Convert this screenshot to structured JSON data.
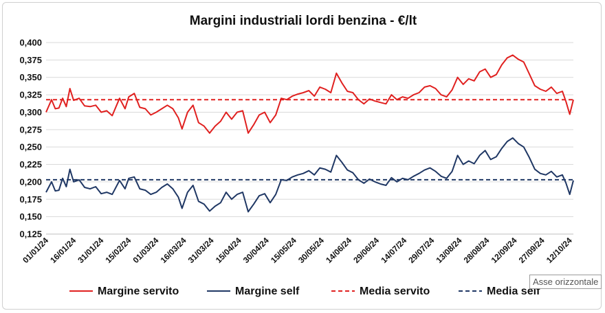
{
  "chart_data": {
    "type": "line",
    "title": "Margini industriali lordi benzina - €/lt",
    "xlabel": "",
    "ylabel": "",
    "ylim": [
      0.125,
      0.4
    ],
    "y_ticks": [
      "0,125",
      "0,150",
      "0,175",
      "0,200",
      "0,225",
      "0,250",
      "0,275",
      "0,300",
      "0,325",
      "0,350",
      "0,375",
      "0,400"
    ],
    "x_ticks": [
      "01/01/24",
      "16/01/24",
      "31/01/24",
      "15/02/24",
      "01/03/24",
      "16/03/24",
      "31/03/24",
      "15/04/24",
      "30/04/24",
      "15/05/24",
      "30/05/24",
      "14/06/24",
      "29/06/24",
      "14/07/24",
      "29/07/24",
      "13/08/24",
      "28/08/24",
      "12/09/24",
      "27/09/24",
      "12/10/24"
    ],
    "x_start": "01/01/24",
    "x_end": "14/10/24",
    "grid": "horizontal",
    "legend_position": "bottom",
    "series": [
      {
        "name": "Margine servito",
        "color": "#e0201f",
        "style": "solid",
        "points": [
          [
            "01/01/24",
            0.3
          ],
          [
            "04/01/24",
            0.318
          ],
          [
            "06/01/24",
            0.305
          ],
          [
            "08/01/24",
            0.306
          ],
          [
            "10/01/24",
            0.32
          ],
          [
            "12/01/24",
            0.308
          ],
          [
            "14/01/24",
            0.334
          ],
          [
            "16/01/24",
            0.317
          ],
          [
            "19/01/24",
            0.32
          ],
          [
            "22/01/24",
            0.309
          ],
          [
            "25/01/24",
            0.308
          ],
          [
            "28/01/24",
            0.31
          ],
          [
            "31/01/24",
            0.3
          ],
          [
            "03/02/24",
            0.302
          ],
          [
            "06/02/24",
            0.295
          ],
          [
            "10/02/24",
            0.32
          ],
          [
            "13/02/24",
            0.305
          ],
          [
            "15/02/24",
            0.322
          ],
          [
            "18/02/24",
            0.327
          ],
          [
            "21/02/24",
            0.307
          ],
          [
            "24/02/24",
            0.305
          ],
          [
            "27/02/24",
            0.296
          ],
          [
            "01/03/24",
            0.3
          ],
          [
            "04/03/24",
            0.305
          ],
          [
            "07/03/24",
            0.31
          ],
          [
            "10/03/24",
            0.305
          ],
          [
            "13/03/24",
            0.292
          ],
          [
            "15/03/24",
            0.276
          ],
          [
            "18/03/24",
            0.3
          ],
          [
            "21/03/24",
            0.31
          ],
          [
            "24/03/24",
            0.285
          ],
          [
            "27/03/24",
            0.28
          ],
          [
            "30/03/24",
            0.27
          ],
          [
            "02/04/24",
            0.28
          ],
          [
            "05/04/24",
            0.287
          ],
          [
            "08/04/24",
            0.3
          ],
          [
            "11/04/24",
            0.29
          ],
          [
            "14/04/24",
            0.3
          ],
          [
            "17/04/24",
            0.302
          ],
          [
            "20/04/24",
            0.27
          ],
          [
            "23/04/24",
            0.282
          ],
          [
            "26/04/24",
            0.296
          ],
          [
            "29/04/24",
            0.3
          ],
          [
            "02/05/24",
            0.285
          ],
          [
            "05/05/24",
            0.296
          ],
          [
            "08/05/24",
            0.32
          ],
          [
            "11/05/24",
            0.318
          ],
          [
            "14/05/24",
            0.323
          ],
          [
            "17/05/24",
            0.326
          ],
          [
            "20/05/24",
            0.328
          ],
          [
            "23/05/24",
            0.331
          ],
          [
            "26/05/24",
            0.323
          ],
          [
            "29/05/24",
            0.336
          ],
          [
            "01/06/24",
            0.333
          ],
          [
            "04/06/24",
            0.328
          ],
          [
            "07/06/24",
            0.356
          ],
          [
            "10/06/24",
            0.342
          ],
          [
            "13/06/24",
            0.33
          ],
          [
            "16/06/24",
            0.328
          ],
          [
            "19/06/24",
            0.318
          ],
          [
            "22/06/24",
            0.312
          ],
          [
            "25/06/24",
            0.319
          ],
          [
            "28/06/24",
            0.316
          ],
          [
            "01/07/24",
            0.314
          ],
          [
            "04/07/24",
            0.312
          ],
          [
            "07/07/24",
            0.325
          ],
          [
            "10/07/24",
            0.318
          ],
          [
            "13/07/24",
            0.322
          ],
          [
            "16/07/24",
            0.32
          ],
          [
            "19/07/24",
            0.325
          ],
          [
            "22/07/24",
            0.328
          ],
          [
            "25/07/24",
            0.336
          ],
          [
            "28/07/24",
            0.338
          ],
          [
            "31/07/24",
            0.334
          ],
          [
            "03/08/24",
            0.325
          ],
          [
            "06/08/24",
            0.322
          ],
          [
            "09/08/24",
            0.332
          ],
          [
            "12/08/24",
            0.35
          ],
          [
            "15/08/24",
            0.34
          ],
          [
            "18/08/24",
            0.348
          ],
          [
            "21/08/24",
            0.345
          ],
          [
            "24/08/24",
            0.358
          ],
          [
            "27/08/24",
            0.362
          ],
          [
            "30/08/24",
            0.35
          ],
          [
            "02/09/24",
            0.354
          ],
          [
            "05/09/24",
            0.368
          ],
          [
            "08/09/24",
            0.378
          ],
          [
            "11/09/24",
            0.382
          ],
          [
            "14/09/24",
            0.376
          ],
          [
            "17/09/24",
            0.372
          ],
          [
            "20/09/24",
            0.355
          ],
          [
            "23/09/24",
            0.338
          ],
          [
            "26/09/24",
            0.333
          ],
          [
            "29/09/24",
            0.33
          ],
          [
            "02/10/24",
            0.336
          ],
          [
            "05/10/24",
            0.327
          ],
          [
            "08/10/24",
            0.33
          ],
          [
            "10/10/24",
            0.315
          ],
          [
            "12/10/24",
            0.297
          ],
          [
            "14/10/24",
            0.318
          ]
        ]
      },
      {
        "name": "Margine self",
        "color": "#1f3764",
        "style": "solid",
        "points": [
          [
            "01/01/24",
            0.185
          ],
          [
            "04/01/24",
            0.2
          ],
          [
            "06/01/24",
            0.187
          ],
          [
            "08/01/24",
            0.188
          ],
          [
            "10/01/24",
            0.205
          ],
          [
            "12/01/24",
            0.193
          ],
          [
            "14/01/24",
            0.218
          ],
          [
            "16/01/24",
            0.2
          ],
          [
            "19/01/24",
            0.203
          ],
          [
            "22/01/24",
            0.192
          ],
          [
            "25/01/24",
            0.19
          ],
          [
            "28/01/24",
            0.193
          ],
          [
            "31/01/24",
            0.183
          ],
          [
            "03/02/24",
            0.185
          ],
          [
            "06/02/24",
            0.182
          ],
          [
            "10/02/24",
            0.202
          ],
          [
            "13/02/24",
            0.19
          ],
          [
            "15/02/24",
            0.205
          ],
          [
            "18/02/24",
            0.207
          ],
          [
            "21/02/24",
            0.19
          ],
          [
            "24/02/24",
            0.188
          ],
          [
            "27/02/24",
            0.182
          ],
          [
            "01/03/24",
            0.185
          ],
          [
            "04/03/24",
            0.192
          ],
          [
            "07/03/24",
            0.197
          ],
          [
            "10/03/24",
            0.19
          ],
          [
            "13/03/24",
            0.178
          ],
          [
            "15/03/24",
            0.162
          ],
          [
            "18/03/24",
            0.185
          ],
          [
            "21/03/24",
            0.195
          ],
          [
            "24/03/24",
            0.172
          ],
          [
            "27/03/24",
            0.168
          ],
          [
            "30/03/24",
            0.158
          ],
          [
            "02/04/24",
            0.165
          ],
          [
            "05/04/24",
            0.17
          ],
          [
            "08/04/24",
            0.185
          ],
          [
            "11/04/24",
            0.175
          ],
          [
            "14/04/24",
            0.182
          ],
          [
            "17/04/24",
            0.185
          ],
          [
            "20/04/24",
            0.157
          ],
          [
            "23/04/24",
            0.168
          ],
          [
            "26/04/24",
            0.18
          ],
          [
            "29/04/24",
            0.183
          ],
          [
            "02/05/24",
            0.17
          ],
          [
            "05/05/24",
            0.182
          ],
          [
            "08/05/24",
            0.203
          ],
          [
            "11/05/24",
            0.202
          ],
          [
            "14/05/24",
            0.207
          ],
          [
            "17/05/24",
            0.21
          ],
          [
            "20/05/24",
            0.212
          ],
          [
            "23/05/24",
            0.216
          ],
          [
            "26/05/24",
            0.21
          ],
          [
            "29/05/24",
            0.22
          ],
          [
            "01/06/24",
            0.218
          ],
          [
            "04/06/24",
            0.214
          ],
          [
            "07/06/24",
            0.238
          ],
          [
            "10/06/24",
            0.228
          ],
          [
            "13/06/24",
            0.217
          ],
          [
            "16/06/24",
            0.213
          ],
          [
            "19/06/24",
            0.203
          ],
          [
            "22/06/24",
            0.198
          ],
          [
            "25/06/24",
            0.204
          ],
          [
            "28/06/24",
            0.2
          ],
          [
            "01/07/24",
            0.197
          ],
          [
            "04/07/24",
            0.195
          ],
          [
            "07/07/24",
            0.206
          ],
          [
            "10/07/24",
            0.2
          ],
          [
            "13/07/24",
            0.205
          ],
          [
            "16/07/24",
            0.203
          ],
          [
            "19/07/24",
            0.208
          ],
          [
            "22/07/24",
            0.212
          ],
          [
            "25/07/24",
            0.217
          ],
          [
            "28/07/24",
            0.22
          ],
          [
            "31/07/24",
            0.215
          ],
          [
            "03/08/24",
            0.208
          ],
          [
            "06/08/24",
            0.205
          ],
          [
            "09/08/24",
            0.215
          ],
          [
            "12/08/24",
            0.238
          ],
          [
            "15/08/24",
            0.225
          ],
          [
            "18/08/24",
            0.23
          ],
          [
            "21/08/24",
            0.226
          ],
          [
            "24/08/24",
            0.238
          ],
          [
            "27/08/24",
            0.245
          ],
          [
            "30/08/24",
            0.232
          ],
          [
            "02/09/24",
            0.236
          ],
          [
            "05/09/24",
            0.248
          ],
          [
            "08/09/24",
            0.258
          ],
          [
            "11/09/24",
            0.263
          ],
          [
            "14/09/24",
            0.255
          ],
          [
            "17/09/24",
            0.25
          ],
          [
            "20/09/24",
            0.235
          ],
          [
            "23/09/24",
            0.218
          ],
          [
            "26/09/24",
            0.212
          ],
          [
            "29/09/24",
            0.21
          ],
          [
            "02/10/24",
            0.215
          ],
          [
            "05/10/24",
            0.207
          ],
          [
            "08/10/24",
            0.21
          ],
          [
            "10/10/24",
            0.198
          ],
          [
            "12/10/24",
            0.182
          ],
          [
            "14/10/24",
            0.202
          ]
        ]
      },
      {
        "name": "Media servito",
        "color": "#e0201f",
        "style": "dashed",
        "points": [
          [
            "01/01/24",
            0.318
          ],
          [
            "14/10/24",
            0.318
          ]
        ]
      },
      {
        "name": "Media self",
        "color": "#1f3764",
        "style": "dashed",
        "points": [
          [
            "01/01/24",
            0.203
          ],
          [
            "14/10/24",
            0.203
          ]
        ]
      }
    ]
  },
  "tooltip": "Asse orizzontale"
}
